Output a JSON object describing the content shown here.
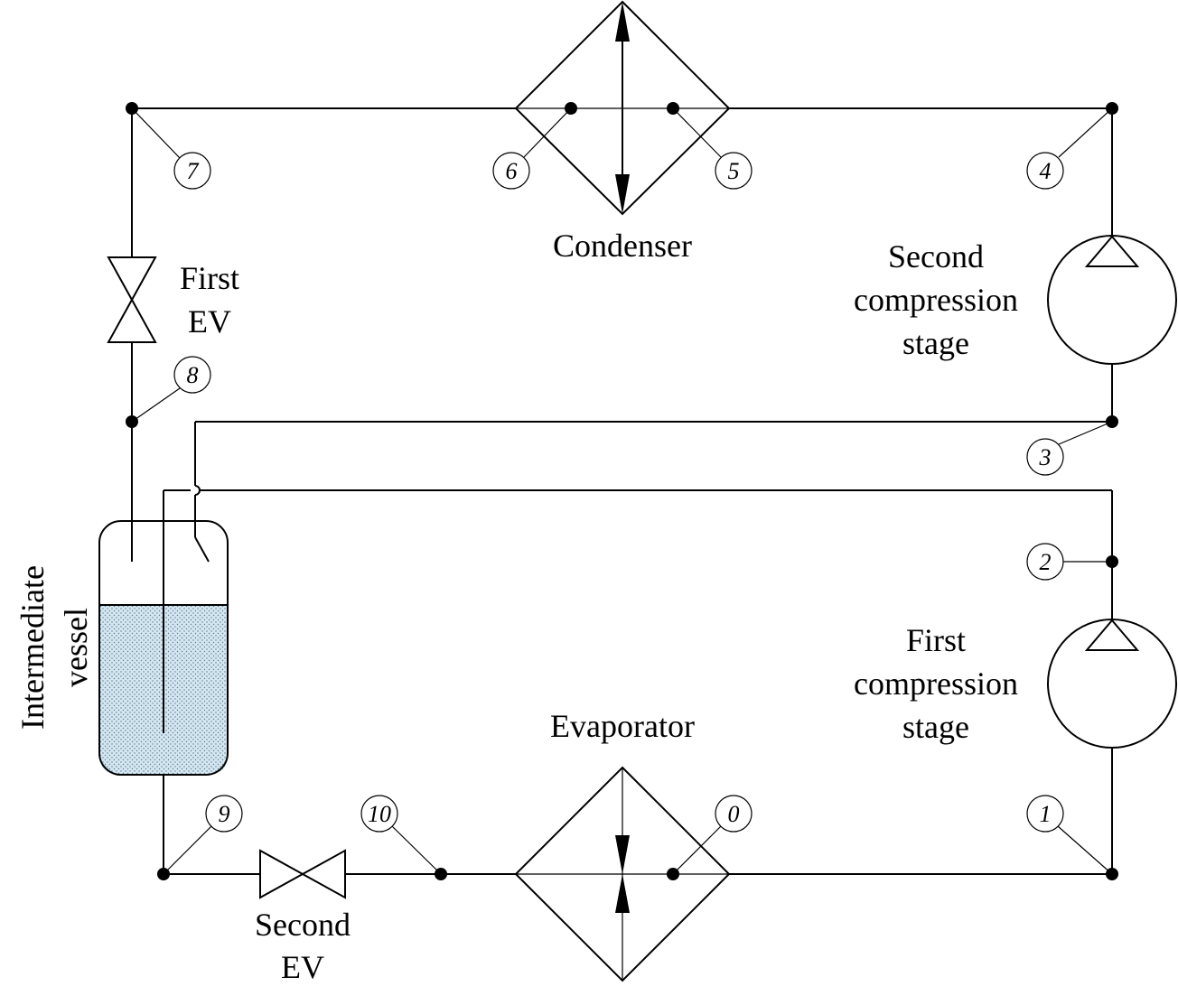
{
  "diagram": {
    "labels": {
      "condenser": "Condenser",
      "evaporator": "Evaporator",
      "second_compression": [
        "Second",
        "compression",
        "stage"
      ],
      "first_compression": [
        "First",
        "compression",
        "stage"
      ],
      "first_ev": [
        "First",
        "EV"
      ],
      "second_ev": [
        "Second",
        "EV"
      ],
      "intermediate_vessel": [
        "Intermediate",
        "vessel"
      ]
    },
    "state_points": [
      "0",
      "1",
      "2",
      "3",
      "4",
      "5",
      "6",
      "7",
      "8",
      "9",
      "10"
    ],
    "colors": {
      "line": "#000000",
      "liquid_fill": "#cfe3ef",
      "background": "#ffffff"
    }
  }
}
